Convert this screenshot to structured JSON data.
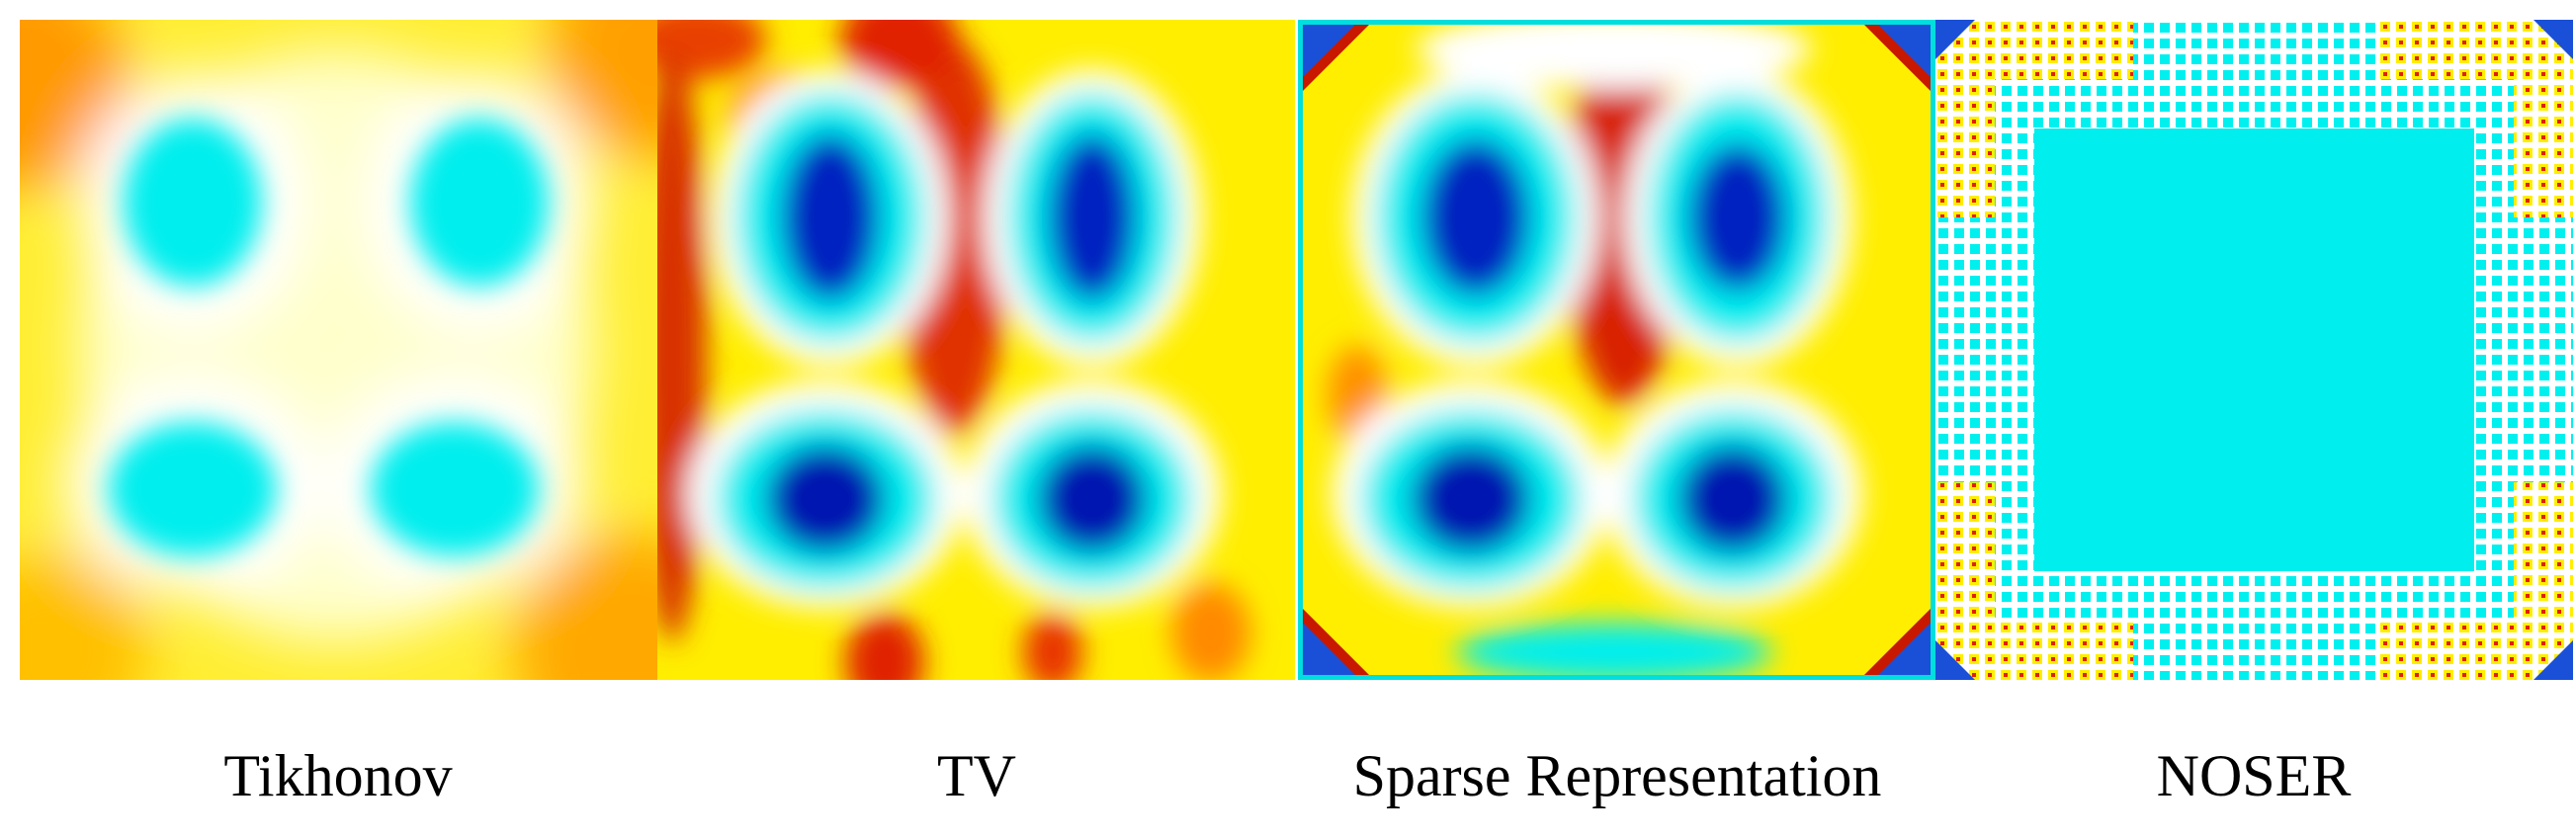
{
  "panels": [
    {
      "label": "Tikhonov"
    },
    {
      "label": "TV"
    },
    {
      "label": "Sparse Representation"
    },
    {
      "label": "NOSER"
    }
  ]
}
